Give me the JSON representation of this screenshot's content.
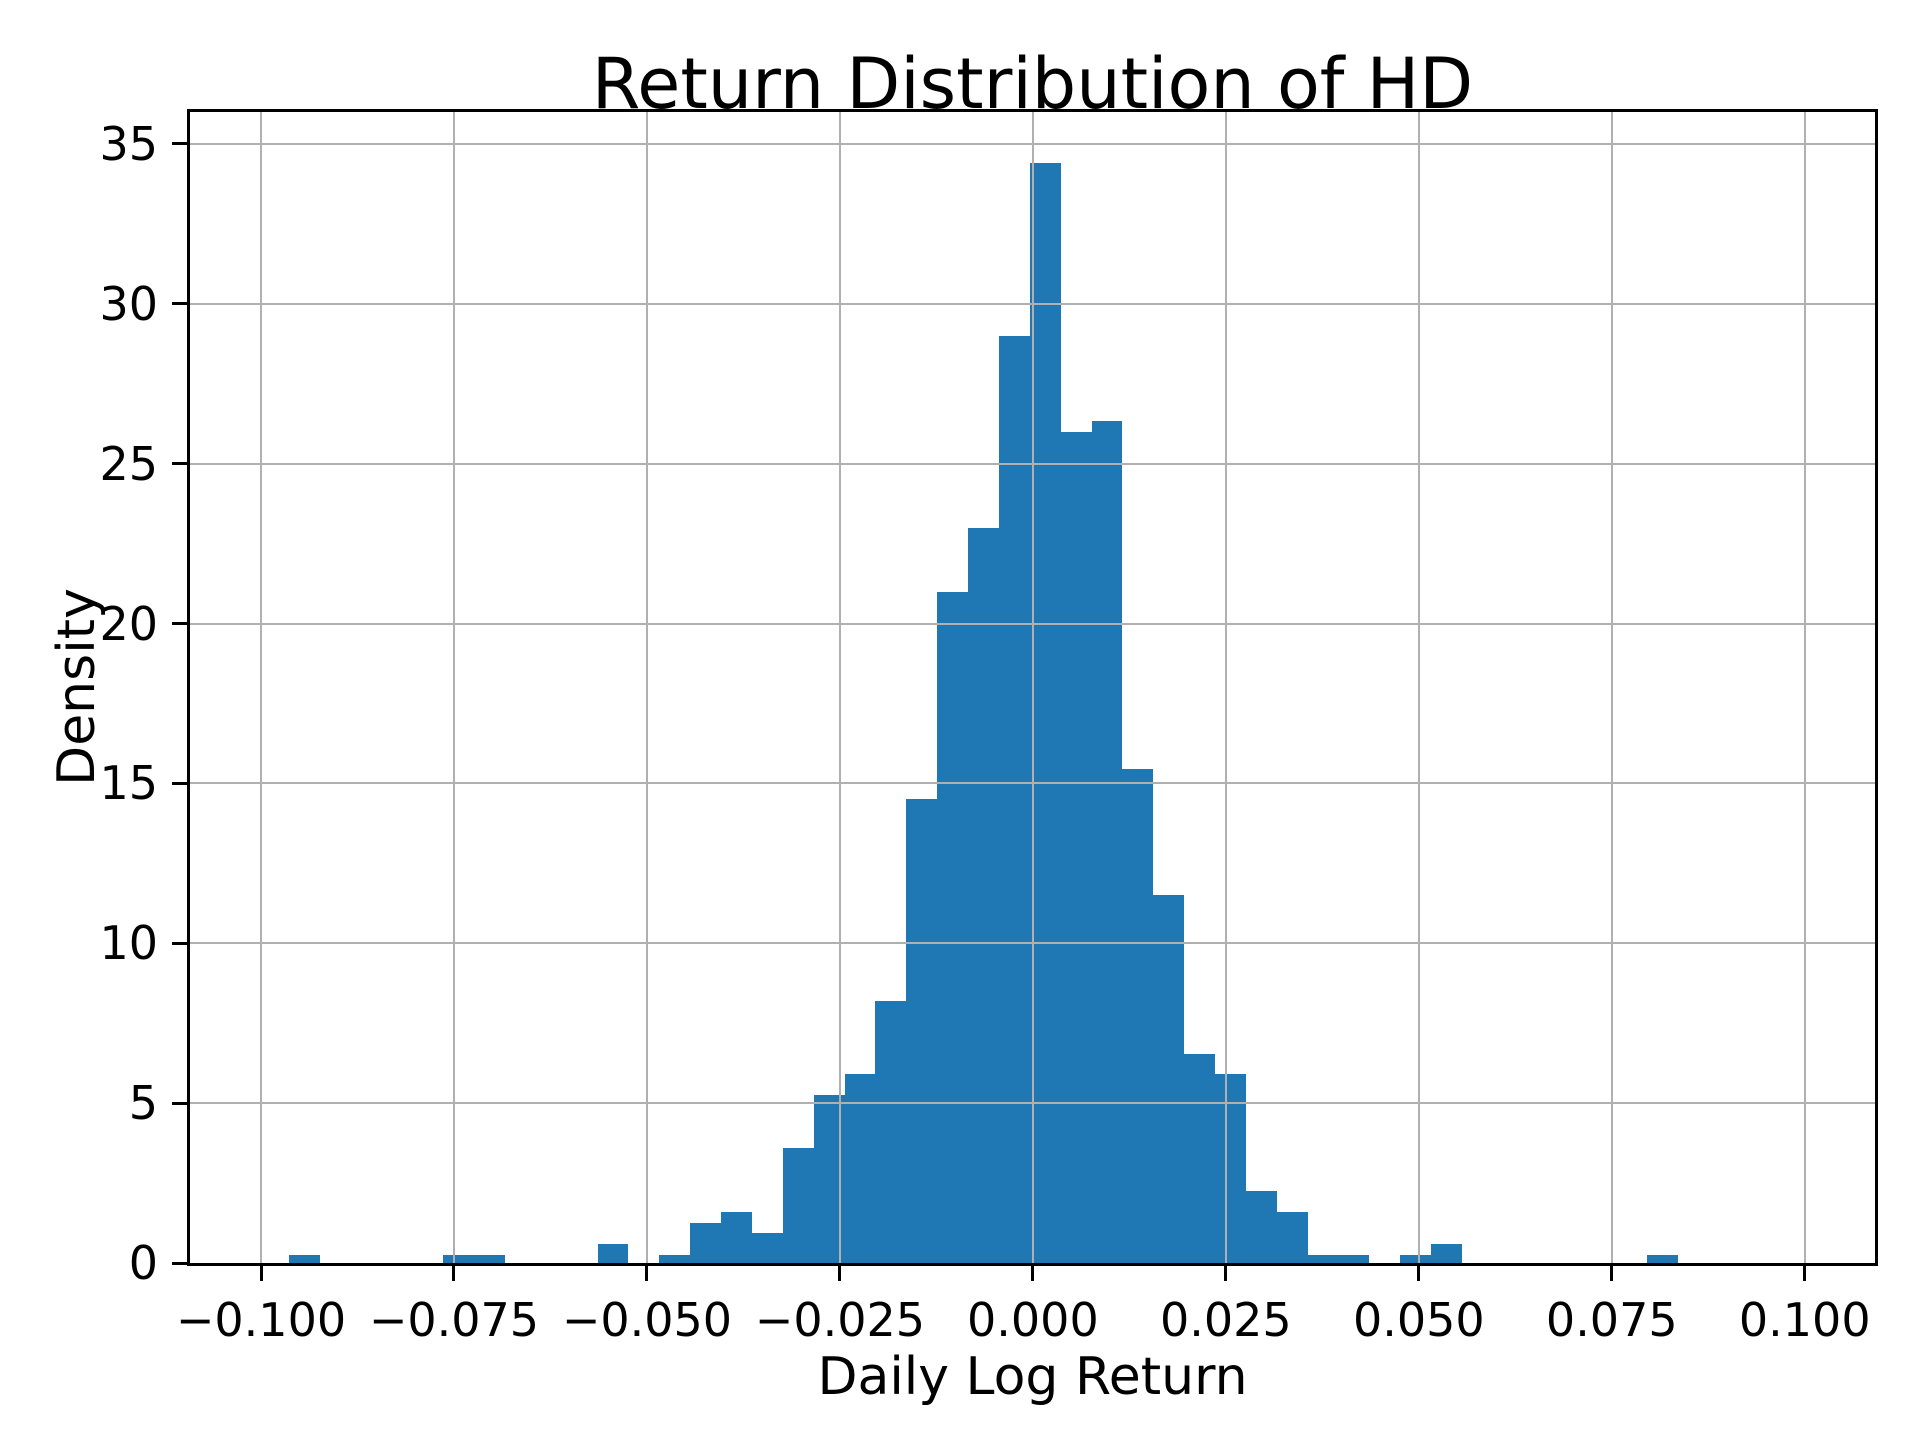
{
  "title": "Return Distribution of HD",
  "x_axis": {
    "label": "Daily Log Return",
    "tick_labels": [
      "−0.100",
      "−0.075",
      "−0.050",
      "−0.025",
      "0.000",
      "0.025",
      "0.050",
      "0.075",
      "0.100"
    ],
    "tick_values": [
      -0.1,
      -0.075,
      -0.05,
      -0.025,
      0.0,
      0.025,
      0.05,
      0.075,
      0.1
    ]
  },
  "y_axis": {
    "label": "Density",
    "tick_labels": [
      "0",
      "5",
      "10",
      "15",
      "20",
      "25",
      "30",
      "35"
    ],
    "tick_values": [
      0,
      5,
      10,
      15,
      20,
      25,
      30,
      35
    ]
  },
  "colors": {
    "bar": "#1f77b4",
    "grid": "#b0b0b0",
    "spine": "#000000",
    "background": "#ffffff",
    "text": "#000000"
  },
  "chart_data": {
    "type": "bar",
    "subtype": "histogram",
    "title": "Return Distribution of HD",
    "xlabel": "Daily Log Return",
    "ylabel": "Density",
    "grid": true,
    "legend": false,
    "bin_start": -0.0964,
    "bin_width": 0.004,
    "densities": [
      0.25,
      0,
      0,
      0,
      0,
      0.25,
      0.25,
      0,
      0,
      0,
      0.6,
      0,
      0.25,
      1.25,
      1.6,
      0.95,
      3.6,
      5.25,
      5.9,
      8.2,
      14.5,
      21.0,
      23.0,
      29.0,
      34.4,
      26.0,
      26.35,
      15.45,
      11.5,
      6.55,
      5.9,
      2.25,
      1.6,
      0.25,
      0.25,
      0,
      0.25,
      0.6,
      0,
      0,
      0,
      0,
      0,
      0,
      0.25
    ],
    "xlim": [
      -0.1092,
      0.1091
    ],
    "ylim": [
      0,
      36
    ]
  }
}
